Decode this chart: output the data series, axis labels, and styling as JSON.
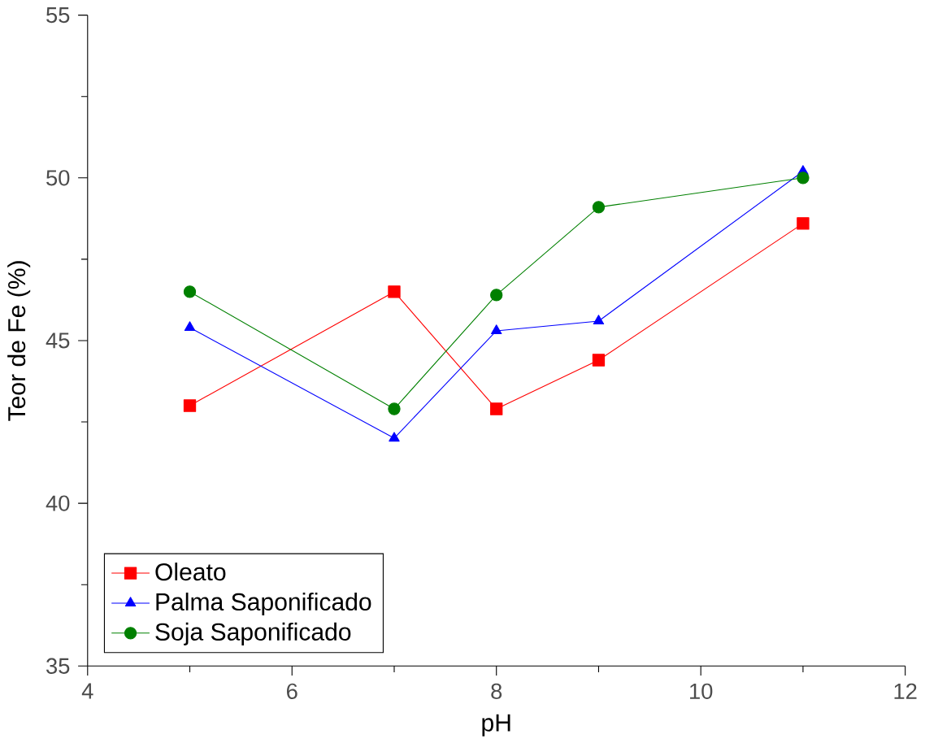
{
  "chart_data": {
    "type": "line",
    "xlabel": "pH",
    "ylabel": "Teor de Fe (%)",
    "x": [
      5,
      7,
      8,
      9,
      11
    ],
    "series": [
      {
        "name": "Oleato",
        "color": "#ff0000",
        "marker": "square",
        "values": [
          43.0,
          46.5,
          42.9,
          44.4,
          48.6
        ]
      },
      {
        "name": "Palma Saponificado",
        "color": "#0000ff",
        "marker": "triangle",
        "values": [
          45.4,
          42.0,
          45.3,
          45.6,
          50.2
        ]
      },
      {
        "name": "Soja Saponificado",
        "color": "#008000",
        "marker": "circle",
        "values": [
          46.5,
          42.9,
          46.4,
          49.1,
          50.0
        ]
      }
    ],
    "xlim": [
      4,
      12
    ],
    "xticks": [
      4,
      6,
      8,
      10,
      12
    ],
    "ylim": [
      35,
      55
    ],
    "yticks": [
      35,
      40,
      45,
      50,
      55
    ],
    "grid": false,
    "legend": "bottom left",
    "line_style": "solid"
  }
}
